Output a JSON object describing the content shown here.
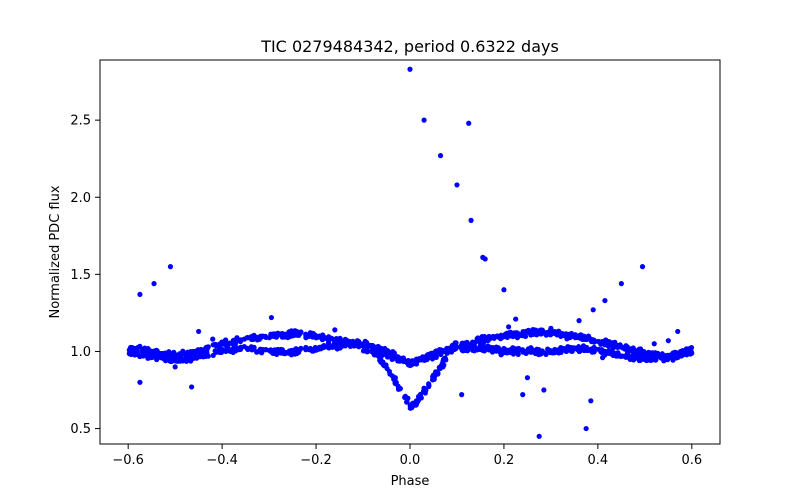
{
  "chart_data": {
    "type": "scatter",
    "title": "TIC 0279484342, period 0.6322 days",
    "xlabel": "Phase",
    "ylabel": "Normalized PDC flux",
    "xlim": [
      -0.66,
      0.66
    ],
    "ylim": [
      0.4,
      2.89
    ],
    "x_ticks": [
      -0.6,
      -0.4,
      -0.2,
      0.0,
      0.2,
      0.4,
      0.6
    ],
    "x_tick_labels": [
      "−0.6",
      "−0.4",
      "−0.2",
      "0.0",
      "0.2",
      "0.4",
      "0.6"
    ],
    "y_ticks": [
      0.5,
      1.0,
      1.5,
      2.0,
      2.5
    ],
    "y_tick_labels": [
      "0.5",
      "1.0",
      "1.5",
      "2.0",
      "2.5"
    ],
    "grid": false,
    "marker_color": "#0000ff",
    "series": [
      {
        "baseline_x": [
          -0.6,
          -0.55,
          -0.5,
          -0.45,
          -0.4,
          -0.35,
          -0.3,
          -0.25,
          -0.2,
          -0.15,
          -0.1,
          -0.05,
          0.0,
          0.05,
          0.1,
          0.15,
          0.2,
          0.25,
          0.3,
          0.35,
          0.4,
          0.45,
          0.5,
          0.55,
          0.6
        ],
        "upper_branch_y": [
          1.02,
          1.0,
          0.97,
          1.0,
          1.05,
          1.08,
          1.1,
          1.12,
          1.1,
          1.07,
          1.04,
          0.98,
          0.92,
          0.98,
          1.04,
          1.07,
          1.1,
          1.12,
          1.12,
          1.1,
          1.07,
          1.03,
          0.99,
          0.97,
          1.01
        ],
        "lower_branch_y": [
          1.0,
          0.97,
          0.94,
          0.97,
          1.01,
          1.02,
          1.0,
          1.0,
          1.02,
          1.04,
          1.05,
          1.0,
          0.92,
          0.98,
          1.02,
          1.02,
          1.0,
          1.0,
          1.0,
          1.02,
          1.01,
          0.97,
          0.95,
          0.96,
          1.0
        ],
        "eclipse_x": [
          -0.1,
          -0.07,
          -0.05,
          -0.035,
          -0.02,
          -0.01,
          0.0,
          0.01,
          0.02,
          0.03,
          0.04,
          0.05,
          0.06,
          0.07,
          0.08,
          0.1
        ],
        "eclipse_y": [
          1.02,
          0.98,
          0.9,
          0.82,
          0.75,
          0.69,
          0.65,
          0.66,
          0.7,
          0.74,
          0.78,
          0.83,
          0.88,
          0.93,
          0.98,
          1.03
        ],
        "outliers_x": [
          -0.575,
          -0.545,
          -0.51,
          -0.575,
          -0.5,
          -0.465,
          -0.45,
          -0.42,
          -0.295,
          -0.26,
          -0.16,
          0.0,
          0.03,
          0.065,
          0.1,
          0.125,
          0.13,
          0.11,
          0.155,
          0.16,
          0.2,
          0.21,
          0.225,
          0.24,
          0.25,
          0.275,
          0.285,
          0.3,
          0.34,
          0.36,
          0.375,
          0.385,
          0.39,
          0.41,
          0.415,
          0.45,
          0.495,
          0.52,
          0.55,
          0.57
        ],
        "outliers_y": [
          1.37,
          1.44,
          1.55,
          0.8,
          0.9,
          0.77,
          1.13,
          1.08,
          1.22,
          1.09,
          1.14,
          2.83,
          2.5,
          2.27,
          2.08,
          2.48,
          1.85,
          0.72,
          1.61,
          1.6,
          1.4,
          1.16,
          1.21,
          0.72,
          0.83,
          0.45,
          0.75,
          1.15,
          1.09,
          1.2,
          0.5,
          0.68,
          1.27,
          0.96,
          1.33,
          1.44,
          1.55,
          1.05,
          1.07,
          1.13
        ]
      }
    ]
  }
}
